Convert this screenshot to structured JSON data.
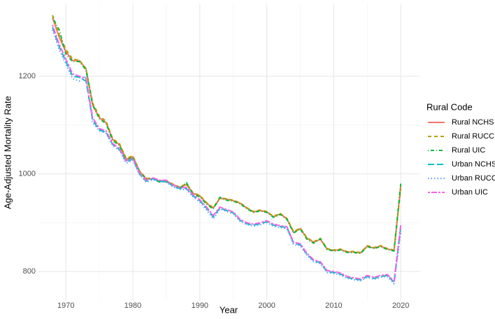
{
  "chart_data": {
    "type": "line",
    "x_label": "Year",
    "y_label": "Age-Adjusted Mortality Rate",
    "legend_title": "Rural Code",
    "legend": "right",
    "grid": true,
    "xlim": [
      1965.9,
      2022.8
    ],
    "xticks": [
      1970,
      1980,
      1990,
      2000,
      2010,
      2020
    ],
    "ylim": [
      740,
      1349
    ],
    "yticks": [
      800,
      1000,
      1200
    ],
    "x": [
      1968,
      1969,
      1970,
      1971,
      1972,
      1973,
      1974,
      1975,
      1976,
      1977,
      1978,
      1979,
      1980,
      1981,
      1982,
      1983,
      1984,
      1985,
      1986,
      1987,
      1988,
      1989,
      1990,
      1991,
      1992,
      1993,
      1994,
      1995,
      1996,
      1997,
      1998,
      1999,
      2000,
      2001,
      2002,
      2003,
      2004,
      2005,
      2006,
      2007,
      2008,
      2009,
      2010,
      2011,
      2012,
      2013,
      2014,
      2015,
      2016,
      2017,
      2018,
      2019,
      2020
    ],
    "series": [
      {
        "name": "Rural NCHS",
        "color": "#F8766D",
        "dash": "solid",
        "values": [
          1320,
          1280,
          1250,
          1232,
          1232,
          1215,
          1140,
          1115,
          1105,
          1070,
          1060,
          1030,
          1035,
          1005,
          990,
          990,
          985,
          985,
          978,
          972,
          978,
          960,
          955,
          940,
          930,
          950,
          948,
          945,
          940,
          930,
          922,
          925,
          922,
          912,
          918,
          908,
          880,
          888,
          868,
          860,
          866,
          846,
          843,
          845,
          840,
          840,
          838,
          852,
          848,
          852,
          846,
          843,
          975
        ]
      },
      {
        "name": "Rural RUCC",
        "color": "#B79F00",
        "dash": "dashed",
        "values": [
          1325,
          1285,
          1255,
          1235,
          1233,
          1216,
          1145,
          1118,
          1108,
          1072,
          1062,
          1032,
          1037,
          1006,
          991,
          991,
          986,
          986,
          979,
          973,
          980,
          961,
          956,
          941,
          931,
          951,
          949,
          946,
          941,
          931,
          923,
          926,
          923,
          913,
          919,
          909,
          882,
          889,
          869,
          861,
          868,
          847,
          844,
          846,
          841,
          841,
          839,
          853,
          849,
          853,
          847,
          844,
          970
        ]
      },
      {
        "name": "Rural UIC",
        "color": "#00BA38",
        "dash": "dotdash",
        "values": [
          1320,
          1295,
          1245,
          1230,
          1230,
          1213,
          1142,
          1113,
          1103,
          1068,
          1058,
          1028,
          1034,
          1004,
          989,
          990,
          983,
          984,
          977,
          971,
          982,
          958,
          953,
          938,
          928,
          952,
          946,
          944,
          939,
          929,
          921,
          924,
          921,
          911,
          917,
          907,
          879,
          887,
          866,
          858,
          867,
          845,
          842,
          844,
          839,
          839,
          837,
          851,
          847,
          851,
          845,
          842,
          980
        ]
      },
      {
        "name": "Urban NCHS",
        "color": "#00BFC4",
        "dash": "longdash",
        "values": [
          1300,
          1260,
          1230,
          1200,
          1198,
          1190,
          1110,
          1090,
          1085,
          1060,
          1050,
          1025,
          1030,
          1000,
          985,
          990,
          985,
          985,
          975,
          970,
          970,
          955,
          945,
          930,
          912,
          930,
          925,
          920,
          905,
          898,
          895,
          898,
          902,
          895,
          892,
          890,
          858,
          855,
          835,
          822,
          818,
          800,
          798,
          795,
          788,
          785,
          783,
          790,
          786,
          790,
          792,
          778,
          890
        ]
      },
      {
        "name": "Urban RUCC",
        "color": "#619CFF",
        "dash": "dotted",
        "values": [
          1295,
          1255,
          1225,
          1195,
          1190,
          1200,
          1105,
          1088,
          1083,
          1058,
          1048,
          1022,
          1028,
          998,
          983,
          988,
          983,
          983,
          973,
          968,
          968,
          953,
          942,
          926,
          908,
          928,
          923,
          918,
          903,
          896,
          893,
          896,
          900,
          893,
          890,
          888,
          855,
          853,
          833,
          820,
          816,
          798,
          796,
          793,
          786,
          783,
          781,
          788,
          784,
          788,
          790,
          775,
          880
        ]
      },
      {
        "name": "Urban UIC",
        "color": "#F564E3",
        "dash": "twodash",
        "values": [
          1305,
          1265,
          1235,
          1205,
          1200,
          1195,
          1115,
          1093,
          1088,
          1062,
          1052,
          1027,
          1032,
          1002,
          987,
          992,
          987,
          987,
          977,
          972,
          972,
          957,
          947,
          932,
          915,
          932,
          927,
          922,
          907,
          900,
          897,
          900,
          904,
          897,
          894,
          892,
          860,
          857,
          837,
          824,
          820,
          802,
          800,
          797,
          790,
          787,
          785,
          792,
          788,
          792,
          794,
          780,
          895
        ]
      }
    ]
  }
}
